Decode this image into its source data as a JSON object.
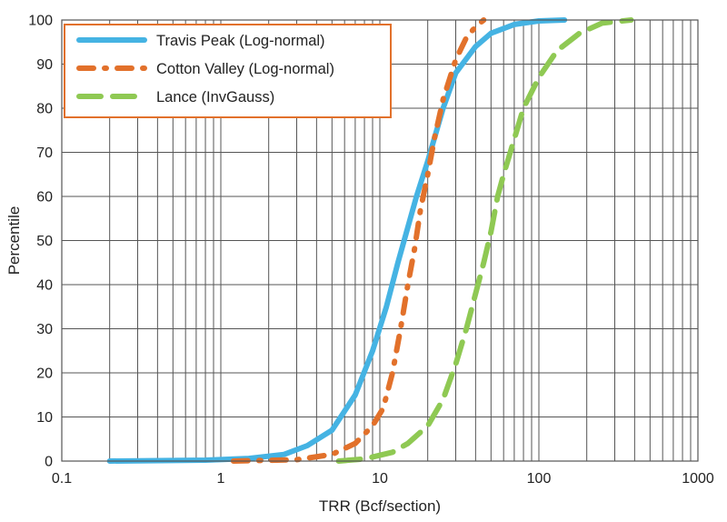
{
  "chart_data": {
    "type": "line",
    "xlabel": "TRR (Bcf/section)",
    "ylabel": "Percentile",
    "xscale": "log",
    "xlim": [
      0.1,
      1000
    ],
    "ylim": [
      0,
      100
    ],
    "xticks": [
      "0.1",
      "1",
      "10",
      "100",
      "1000"
    ],
    "yticks": [
      "0",
      "10",
      "20",
      "30",
      "40",
      "50",
      "60",
      "70",
      "80",
      "90",
      "100"
    ],
    "grid": true,
    "legend_position": "top-left",
    "series": [
      {
        "name": "Travis Peak (Log-normal)",
        "color": "#45b3e3",
        "style": "solid",
        "points": [
          [
            0.2,
            0
          ],
          [
            0.8,
            0.2
          ],
          [
            1.5,
            0.6
          ],
          [
            2.5,
            1.5
          ],
          [
            3.5,
            3.5
          ],
          [
            5,
            7
          ],
          [
            7,
            15
          ],
          [
            9,
            25
          ],
          [
            11,
            35
          ],
          [
            13,
            45
          ],
          [
            15,
            53
          ],
          [
            17,
            60
          ],
          [
            20,
            68
          ],
          [
            25,
            80
          ],
          [
            30,
            88
          ],
          [
            40,
            94
          ],
          [
            50,
            97
          ],
          [
            70,
            99
          ],
          [
            100,
            99.8
          ],
          [
            145,
            100
          ]
        ]
      },
      {
        "name": "Cotton Valley (Log-normal)",
        "color": "#e2712b",
        "style": "dashdot",
        "points": [
          [
            1.2,
            0
          ],
          [
            3,
            0.3
          ],
          [
            5,
            1.5
          ],
          [
            7,
            4
          ],
          [
            9,
            8
          ],
          [
            10.5,
            12
          ],
          [
            12,
            20
          ],
          [
            13.5,
            30
          ],
          [
            15,
            40
          ],
          [
            16.5,
            48
          ],
          [
            18,
            57
          ],
          [
            20,
            65
          ],
          [
            22,
            73
          ],
          [
            25,
            82
          ],
          [
            30,
            91
          ],
          [
            35,
            96
          ],
          [
            40,
            98.5
          ],
          [
            45,
            100
          ]
        ]
      },
      {
        "name": "Lance (InvGauss)",
        "color": "#8fc953",
        "style": "dashed",
        "points": [
          [
            5.5,
            0
          ],
          [
            8,
            0.5
          ],
          [
            12,
            2
          ],
          [
            15,
            4
          ],
          [
            20,
            8
          ],
          [
            25,
            14
          ],
          [
            30,
            22
          ],
          [
            35,
            30
          ],
          [
            40,
            38
          ],
          [
            45,
            45
          ],
          [
            50,
            52
          ],
          [
            55,
            60
          ],
          [
            60,
            65
          ],
          [
            70,
            73
          ],
          [
            80,
            80
          ],
          [
            100,
            87
          ],
          [
            130,
            93
          ],
          [
            180,
            97
          ],
          [
            250,
            99.3
          ],
          [
            380,
            100
          ]
        ]
      }
    ]
  }
}
